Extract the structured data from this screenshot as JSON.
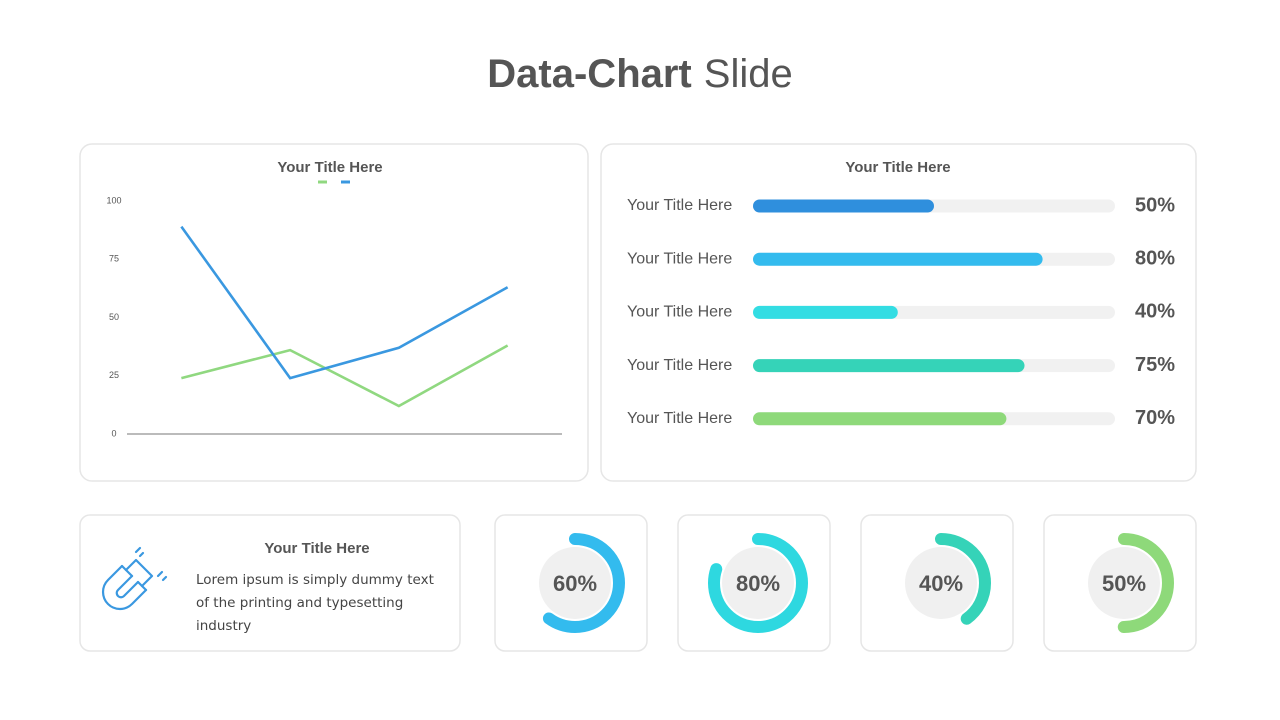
{
  "title": {
    "bold": "Data-Chart",
    "rest": "Slide"
  },
  "chart_data": [
    {
      "type": "line",
      "title": "Your Title Here",
      "categories": [
        null,
        null,
        null,
        null
      ],
      "series": [
        {
          "color": "#90d880",
          "values": [
            24,
            36,
            12,
            38
          ]
        },
        {
          "color": "#3a98e0",
          "values": [
            89,
            24,
            37,
            63
          ]
        }
      ],
      "ylim": [
        0,
        100
      ],
      "yticks": [
        0,
        25,
        50,
        75,
        100
      ],
      "grid": false
    },
    {
      "type": "hbar",
      "title": "Your Title Here",
      "categories": [
        "Your Title Here",
        "Your Title Here",
        "Your Title Here",
        "Your Title Here",
        "Your Title Here"
      ],
      "values": [
        50,
        80,
        40,
        75,
        70
      ],
      "value_labels": [
        "50%",
        "80%",
        "40%",
        "75%",
        "70%"
      ],
      "colors": [
        "#2f8fdd",
        "#33bbee",
        "#33dde3",
        "#35d3b8",
        "#8ed97a"
      ],
      "xlim": [
        0,
        100
      ]
    },
    {
      "type": "donut",
      "values": [
        60,
        80,
        40,
        50
      ],
      "value_labels": [
        "60%",
        "80%",
        "40%",
        "50%"
      ],
      "colors": [
        "#33bbee",
        "#2ed8e0",
        "#35d3b8",
        "#8ed97a"
      ],
      "max": 100
    }
  ],
  "info_card": {
    "title": "Your Title Here",
    "text": "Lorem ipsum is simply dummy text of the printing and typesetting industry"
  }
}
